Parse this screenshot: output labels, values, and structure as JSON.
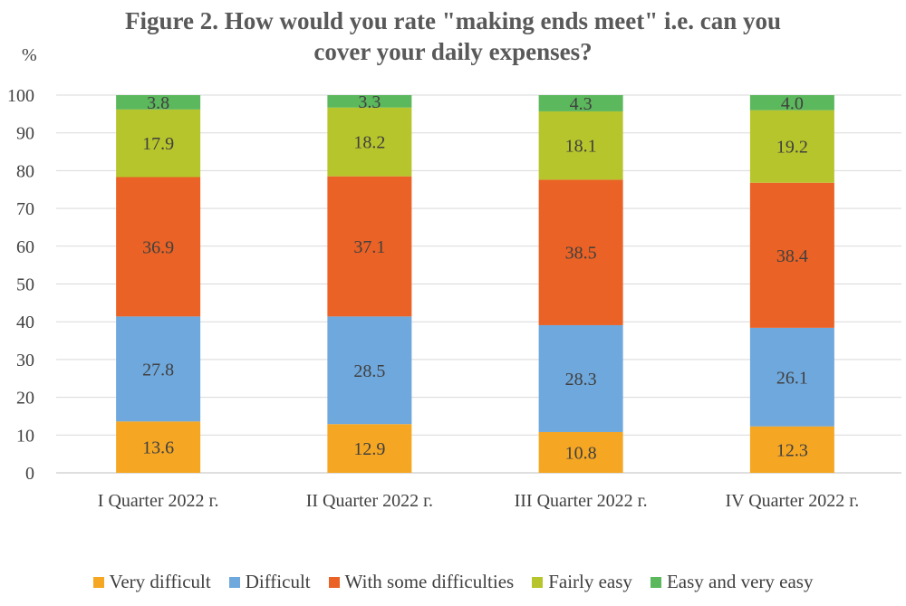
{
  "chart_data": {
    "type": "stacked-bar",
    "title_lines": [
      "Figure 2. How would you rate \"making ends meet\" i.e. can you",
      "cover your daily expenses?"
    ],
    "ylabel": "%",
    "ylim": [
      0,
      100
    ],
    "yticks": [
      0,
      10,
      20,
      30,
      40,
      50,
      60,
      70,
      80,
      90,
      100
    ],
    "grid": true,
    "legend_position": "bottom",
    "categories": [
      "I Quarter 2022 г.",
      "II Quarter 2022 г.",
      "III Quarter 2022 г.",
      "IV Quarter 2022 г."
    ],
    "series": [
      {
        "name": "Very difficult",
        "color": "#f5a623",
        "values": [
          13.6,
          12.9,
          10.8,
          12.3
        ]
      },
      {
        "name": "Difficult",
        "color": "#6fa8dc",
        "values": [
          27.8,
          28.5,
          28.3,
          26.1
        ]
      },
      {
        "name": "With some difficulties",
        "color": "#ea6225",
        "values": [
          36.9,
          37.1,
          38.5,
          38.4
        ]
      },
      {
        "name": "Fairly easy",
        "color": "#b6c52b",
        "values": [
          17.9,
          18.2,
          18.1,
          19.2
        ]
      },
      {
        "name": "Easy and very easy",
        "color": "#5cb85c",
        "values": [
          3.8,
          3.3,
          4.3,
          4.0
        ]
      }
    ]
  }
}
